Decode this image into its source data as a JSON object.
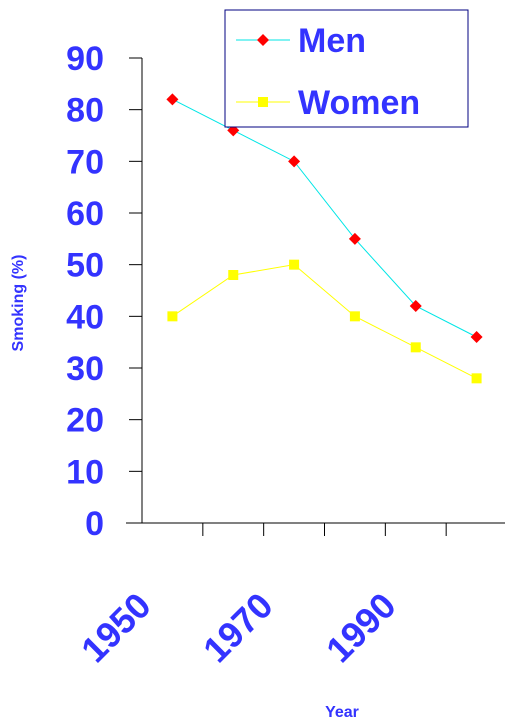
{
  "chart_data": {
    "type": "line",
    "title": "",
    "xlabel": "Year",
    "ylabel": "Smoking (%)",
    "x": [
      1955,
      1965,
      1975,
      1985,
      1995,
      2005
    ],
    "x_tick_labels": [
      "1950",
      "1970",
      "1990"
    ],
    "y_ticks": [
      0,
      10,
      20,
      30,
      40,
      50,
      60,
      70,
      80,
      90
    ],
    "ylim": [
      0,
      90
    ],
    "grid": false,
    "legend_position": "top-right",
    "series": [
      {
        "name": "Men",
        "color": "#00e6e6",
        "marker_color": "#ff0000",
        "marker": "diamond",
        "values": [
          82,
          76,
          70,
          55,
          42,
          36
        ]
      },
      {
        "name": "Women",
        "color": "#ffff00",
        "marker_color": "#ffff00",
        "marker": "square",
        "values": [
          40,
          48,
          50,
          40,
          34,
          28
        ]
      }
    ]
  },
  "colors": {
    "axis": "#000000",
    "text": "#3333ff",
    "legend_border": "#000080"
  }
}
